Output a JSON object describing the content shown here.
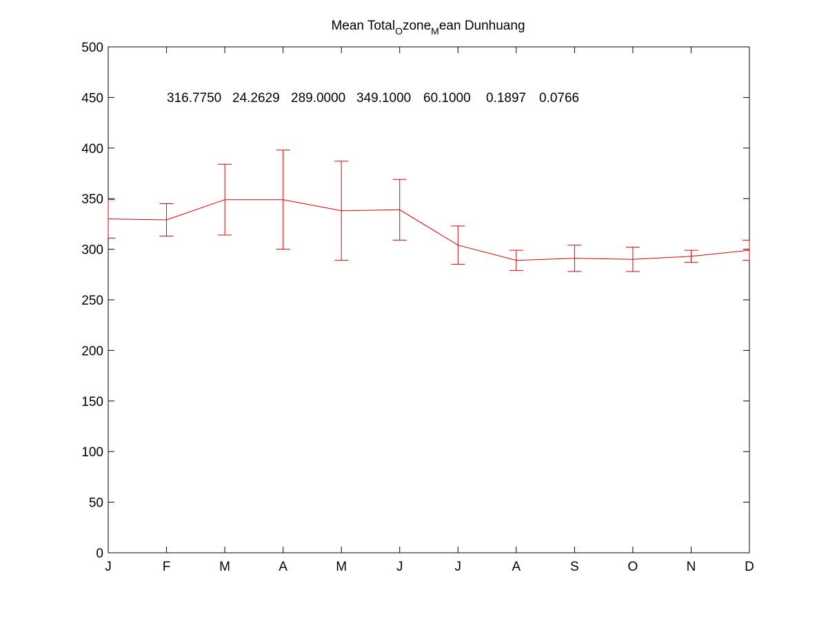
{
  "chart_data": {
    "type": "line",
    "title": {
      "part1": "Mean Total",
      "sub1": "O",
      "part2": "zone",
      "sub2": "M",
      "part3": "ean Dunhuang"
    },
    "stats_text": [
      "316.7750",
      "24.2629",
      "289.0000",
      "349.1000",
      "60.1000",
      "0.1897",
      "0.0766"
    ],
    "categories": [
      "J",
      "F",
      "M",
      "A",
      "M",
      "J",
      "J",
      "A",
      "S",
      "O",
      "N",
      "D"
    ],
    "ylim": [
      0,
      500
    ],
    "yticks": [
      0,
      50,
      100,
      150,
      200,
      250,
      300,
      350,
      400,
      450,
      500
    ],
    "series": [
      {
        "values": [
          330,
          329,
          349,
          349,
          338,
          339,
          304,
          289,
          291,
          290,
          293,
          299
        ],
        "err_low": [
          19,
          16,
          35,
          49,
          49,
          30,
          19,
          10,
          13,
          12,
          6,
          10
        ],
        "err_high": [
          19,
          16,
          35,
          49,
          49,
          30,
          19,
          10,
          13,
          12,
          6,
          10
        ],
        "color": "#e00000"
      }
    ],
    "grid": false,
    "legend": "none"
  }
}
